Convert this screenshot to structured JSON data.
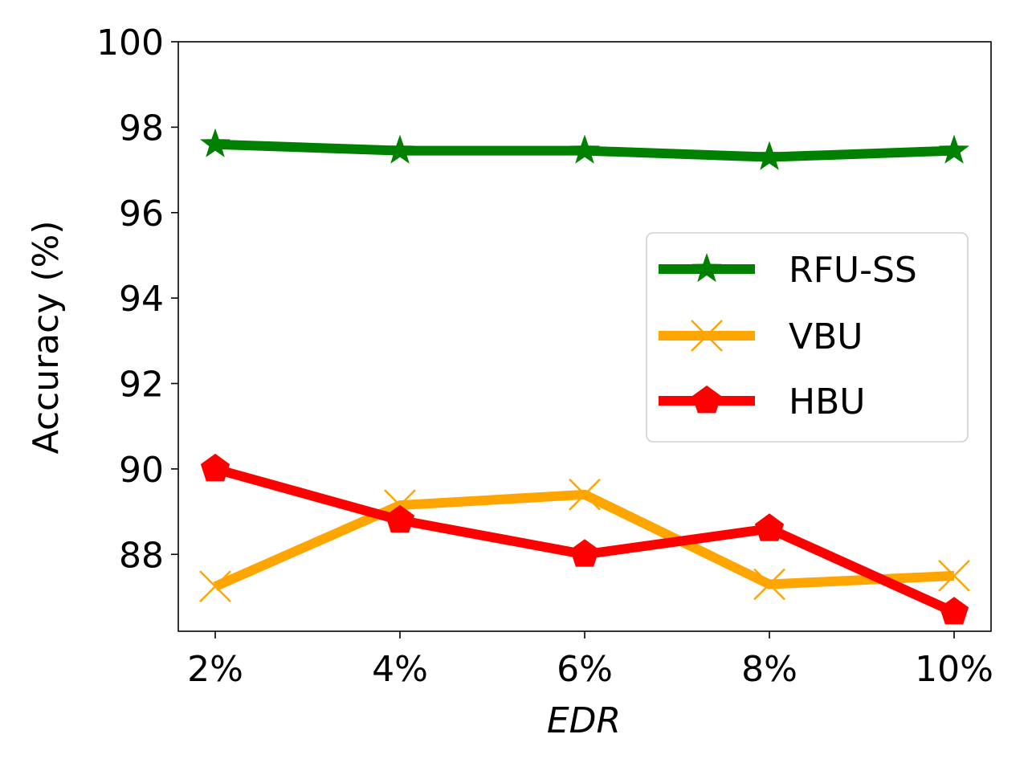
{
  "chart_data": {
    "type": "line",
    "categories": [
      "2%",
      "4%",
      "6%",
      "8%",
      "10%"
    ],
    "xlabel": "EDR",
    "ylabel": "Accuracy (%)",
    "ylim": [
      86.2,
      100
    ],
    "yticks": [
      "88",
      "90",
      "92",
      "94",
      "96",
      "98",
      "100"
    ],
    "grid": false,
    "legend_position": "center-right",
    "series": [
      {
        "name": "RFU-SS",
        "color": "#008000",
        "marker": "star",
        "values": [
          97.6,
          97.45,
          97.45,
          97.3,
          97.45
        ]
      },
      {
        "name": "VBU",
        "color": "#FFA500",
        "marker": "x",
        "values": [
          87.25,
          89.15,
          89.4,
          87.3,
          87.5
        ]
      },
      {
        "name": "HBU",
        "color": "#FF0000",
        "marker": "pentagon",
        "values": [
          90.0,
          88.8,
          88.0,
          88.6,
          86.65
        ]
      }
    ]
  }
}
